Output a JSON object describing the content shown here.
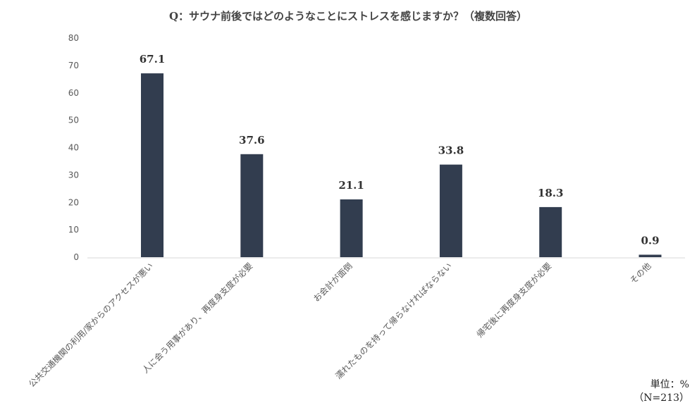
{
  "chart_data": {
    "type": "bar",
    "title": "Q：サウナ前後ではどのようなことにストレスを感じますか？（複数回答）",
    "categories": [
      "公共交通機関の利用/家からのアクセスが悪い",
      "人に会う用事があり、再度身支度が必要",
      "お会計が面倒",
      "濡れたものを持って帰らなければならない",
      "帰宅後に再度身支度が必要",
      "その他"
    ],
    "values": [
      67.1,
      37.6,
      21.1,
      33.8,
      18.3,
      0.9
    ],
    "data_labels": [
      "67.1",
      "37.6",
      "21.1",
      "33.8",
      "18.3",
      "0.9"
    ],
    "yticks": [
      "0",
      "10",
      "20",
      "30",
      "40",
      "50",
      "60",
      "70",
      "80"
    ],
    "ylim": [
      0,
      80
    ],
    "grid": false,
    "legend": "none",
    "bar_color": "#323d4f",
    "unit_note": "単位：%",
    "n_note": "（N=213）"
  }
}
